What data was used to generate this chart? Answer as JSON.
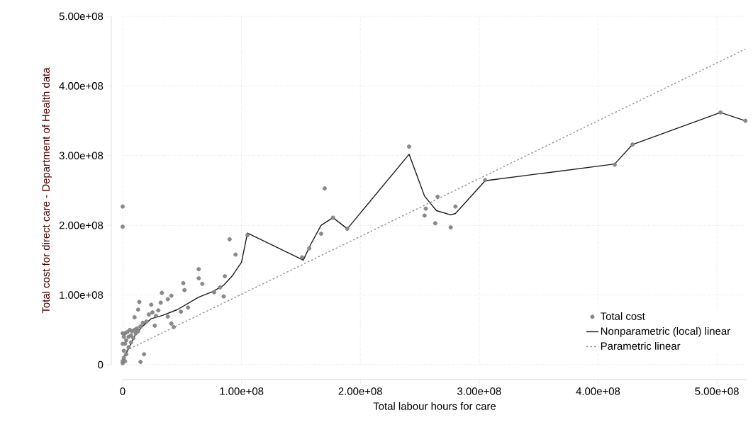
{
  "chart_data": {
    "type": "line",
    "xlabel": "Total labour hours for care",
    "ylabel": "Total cost for direct care - Department of Health data",
    "xlim": [
      0,
      525000000.0
    ],
    "ylim": [
      0,
      500000000.0
    ],
    "xticks": [
      0,
      {
        "value": 100000000.0,
        "label": "1.00e+08"
      },
      {
        "value": 200000000.0,
        "label": "2.00e+08"
      },
      {
        "value": 300000000.0,
        "label": "3.00e+08"
      },
      {
        "value": 400000000.0,
        "label": "4.00e+08"
      },
      {
        "value": 500000000.0,
        "label": "5.00e+08"
      }
    ],
    "yticks": [
      0,
      {
        "value": 100000000.0,
        "label": "1.00e+08"
      },
      {
        "value": 200000000.0,
        "label": "2.00e+08"
      },
      {
        "value": 300000000.0,
        "label": "3.00e+08"
      },
      {
        "value": 400000000.0,
        "label": "4.00e+08"
      },
      {
        "value": 500000000.0,
        "label": "5.00e+08"
      }
    ],
    "grid": true,
    "legend": "bottom right",
    "series": [
      {
        "name": "Total cost",
        "type": "scatter",
        "color": "#6e6e6e",
        "x": [
          0,
          0,
          90000000.0,
          95000000.0,
          105000000.0,
          64000000.0,
          64000000.0,
          51000000.0,
          67000000.0,
          86000000.0,
          82000000.0,
          77000000.0,
          85000000.0,
          52000000.0,
          55000000.0,
          49000000.0,
          41000000.0,
          38000000.0,
          33000000.0,
          38000000.0,
          41000000.0,
          43000000.0,
          18000000.0,
          15000000.0,
          14000000.0,
          13000000.0,
          24000000.0,
          32000000.0,
          27000000.0,
          10000000.0,
          170000000.0,
          167000000.0,
          177000000.0,
          189000000.0,
          241000000.0,
          265000000.0,
          255000000.0,
          254000000.0,
          263000000.0,
          276000000.0,
          280000000.0,
          151000000.0,
          157000000.0,
          305000000.0,
          414000000.0,
          429000000.0,
          503000000.0,
          524000000.0,
          0,
          0,
          1000000.0,
          1000000.0,
          2000000.0,
          1000000.0,
          2000000.0,
          3000000.0,
          4000000.0,
          5000000.0,
          6000000.0,
          7000000.0,
          8000000.0,
          9000000.0,
          10000000.0,
          11000000.0,
          12000000.0,
          3000000.0,
          0,
          0,
          2000000.0,
          5000000.0,
          7000000.0,
          13000000.0,
          15000000.0,
          17000000.0,
          20000000.0,
          22000000.0,
          25000000.0,
          28000000.0,
          30000000.0
        ],
        "values": [
          227000000.0,
          198000000.0,
          180000000.0,
          158000000.0,
          186000000.0,
          137000000.0,
          124000000.0,
          117000000.0,
          116000000.0,
          127000000.0,
          111000000.0,
          104000000.0,
          98000000.0,
          107000000.0,
          82000000.0,
          76000000.0,
          99000000.0,
          94000000.0,
          103000000.0,
          69000000.0,
          59000000.0,
          54000000.0,
          15000000.0,
          4000000.0,
          90000000.0,
          79000000.0,
          86000000.0,
          89000000.0,
          56000000.0,
          68000000.0,
          253000000.0,
          188000000.0,
          211000000.0,
          195000000.0,
          313000000.0,
          241000000.0,
          224000000.0,
          214000000.0,
          203000000.0,
          197000000.0,
          227000000.0,
          154000000.0,
          167000000.0,
          265000000.0,
          287000000.0,
          316000000.0,
          362000000.0,
          350000000.0,
          2000000.0,
          5000000.0,
          10000000.0,
          20000000.0,
          30000000.0,
          40000000.0,
          45000000.0,
          35000000.0,
          47000000.0,
          25000000.0,
          50000000.0,
          42000000.0,
          48000000.0,
          38000000.0,
          50000000.0,
          45000000.0,
          52000000.0,
          15000000.0,
          30000000.0,
          45000000.0,
          5000000.0,
          40000000.0,
          32000000.0,
          48000000.0,
          55000000.0,
          60000000.0,
          62000000.0,
          72000000.0,
          75000000.0,
          70000000.0,
          78000000.0
        ]
      },
      {
        "name": "Nonparametric (local) linear",
        "line_style": "solid",
        "color": "#1a1a1a",
        "x": [
          0,
          4000000.0,
          10000000.0,
          16000000.0,
          24000000.0,
          34000000.0,
          46000000.0,
          64000000.0,
          76000000.0,
          85000000.0,
          92000000.0,
          100000000.0,
          105000000.0,
          152000000.0,
          158000000.0,
          167000000.0,
          177000000.0,
          189000000.0,
          241000000.0,
          254000000.0,
          264000000.0,
          276000000.0,
          280000000.0,
          305000000.0,
          414000000.0,
          429000000.0,
          503000000.0,
          524000000.0
        ],
        "values": [
          7000000.0,
          20000000.0,
          41000000.0,
          54000000.0,
          66000000.0,
          71000000.0,
          79000000.0,
          97000000.0,
          105000000.0,
          114000000.0,
          127000000.0,
          147000000.0,
          189000000.0,
          150000000.0,
          172000000.0,
          200000000.0,
          211000000.0,
          195000000.0,
          302000000.0,
          242000000.0,
          221000000.0,
          215000000.0,
          217000000.0,
          264000000.0,
          288000000.0,
          316000000.0,
          362000000.0,
          350000000.0
        ]
      },
      {
        "name": "Parametric linear",
        "line_style": "dotted",
        "color": "#8c8c8c",
        "x": [
          0,
          524000000.0
        ],
        "values": [
          18000000.0,
          453000000.0
        ]
      }
    ]
  }
}
